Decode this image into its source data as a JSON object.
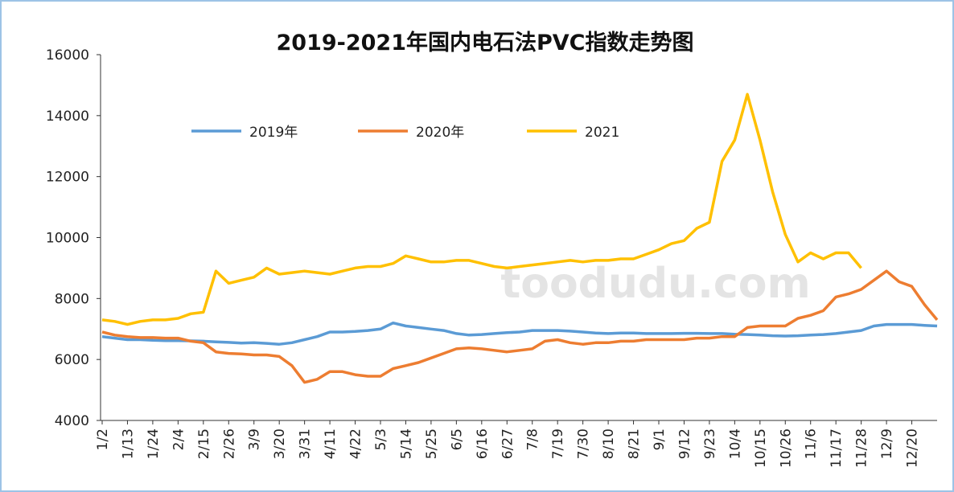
{
  "chart_data": {
    "type": "line",
    "title": "2019-2021年国内电石法PVC指数走势图",
    "watermark": "toodudu.com",
    "categories": [
      "1/2",
      null,
      "1/13",
      null,
      "1/24",
      null,
      "2/4",
      null,
      "2/15",
      null,
      "2/26",
      null,
      "3/9",
      null,
      "3/20",
      null,
      "3/31",
      null,
      "4/11",
      null,
      "4/22",
      null,
      "5/3",
      null,
      "5/14",
      null,
      "5/25",
      null,
      "6/5",
      null,
      "6/16",
      null,
      "6/27",
      null,
      "7/8",
      null,
      "7/19",
      null,
      "7/30",
      null,
      "8/10",
      null,
      "8/21",
      null,
      "9/1",
      null,
      "9/12",
      null,
      "9/23",
      null,
      "10/4",
      null,
      "10/15",
      null,
      "10/26",
      null,
      "11/6",
      null,
      "11/17",
      null,
      "11/28",
      null,
      "12/9",
      null,
      "12/20",
      null,
      null
    ],
    "series": [
      {
        "name": "2019年",
        "color": "#5b9bd5",
        "values": [
          6750,
          6700,
          6650,
          6650,
          6630,
          6620,
          6620,
          6610,
          6600,
          6580,
          6560,
          6540,
          6550,
          6530,
          6500,
          6550,
          6650,
          6750,
          6900,
          6900,
          6920,
          6950,
          7000,
          7200,
          7100,
          7050,
          7000,
          6950,
          6850,
          6800,
          6820,
          6850,
          6880,
          6900,
          6950,
          6950,
          6950,
          6930,
          6900,
          6870,
          6850,
          6870,
          6870,
          6850,
          6850,
          6850,
          6860,
          6860,
          6850,
          6850,
          6830,
          6820,
          6800,
          6780,
          6770,
          6780,
          6800,
          6820,
          6850,
          6900,
          6950,
          7100,
          7150,
          7150,
          7150,
          7120,
          7100
        ]
      },
      {
        "name": "2020年",
        "color": "#ed7d31",
        "values": [
          6900,
          6800,
          6750,
          6720,
          6720,
          6700,
          6700,
          6600,
          6550,
          6250,
          6200,
          6180,
          6150,
          6150,
          6100,
          5800,
          5250,
          5350,
          5600,
          5600,
          5500,
          5450,
          5450,
          5700,
          5800,
          5900,
          6050,
          6200,
          6350,
          6380,
          6350,
          6300,
          6250,
          6300,
          6350,
          6600,
          6650,
          6550,
          6500,
          6550,
          6550,
          6600,
          6600,
          6650,
          6650,
          6650,
          6650,
          6700,
          6700,
          6750,
          6750,
          7050,
          7100,
          7100,
          7100,
          7350,
          7450,
          7600,
          8050,
          8150,
          8300,
          8600,
          8900,
          8550,
          8400,
          7800,
          7300
        ]
      },
      {
        "name": "2021",
        "color": "#ffc000",
        "values": [
          7300,
          7250,
          7150,
          7250,
          7300,
          7300,
          7350,
          7500,
          7550,
          8900,
          8500,
          8600,
          8700,
          9000,
          8800,
          8850,
          8900,
          8850,
          8800,
          8900,
          9000,
          9050,
          9050,
          9150,
          9400,
          9300,
          9200,
          9200,
          9250,
          9250,
          9150,
          9050,
          9000,
          9050,
          9100,
          9150,
          9200,
          9250,
          9200,
          9250,
          9250,
          9300,
          9300,
          9450,
          9600,
          9800,
          9900,
          10300,
          10500,
          12500,
          13200,
          14700,
          13200,
          11500,
          10100,
          9200,
          9500,
          9300,
          9500,
          9500,
          9000,
          null,
          null,
          null,
          null,
          null,
          null
        ]
      }
    ],
    "ylim": [
      4000,
      16000
    ],
    "yticks": [
      4000,
      6000,
      8000,
      10000,
      12000,
      14000,
      16000
    ]
  }
}
